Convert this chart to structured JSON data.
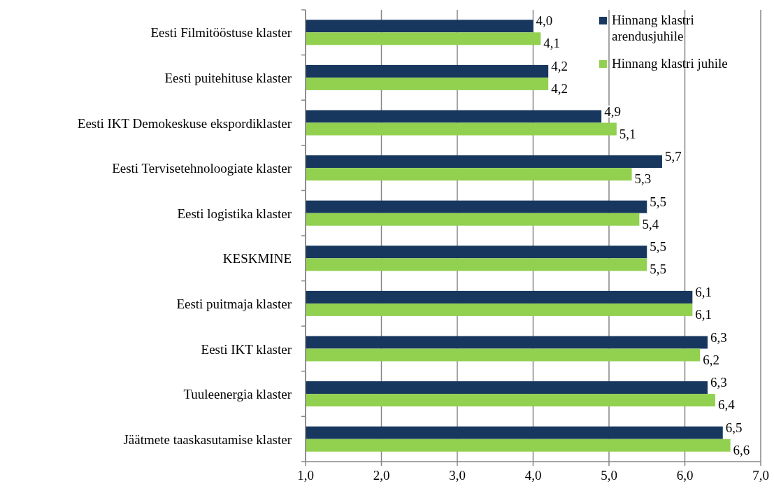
{
  "chart_data": {
    "type": "bar",
    "orientation": "horizontal",
    "categories": [
      "Eesti Filmitööstuse klaster",
      "Eesti puitehituse klaster",
      "Eesti IKT Demokeskuse ekspordiklaster",
      "Eesti Tervisetehnoloogiate klaster",
      "Eesti logistika klaster",
      "KESKMINE",
      "Eesti puitmaja klaster",
      "Eesti IKT klaster",
      "Tuuleenergia klaster",
      "Jäätmete taaskasutamise klaster"
    ],
    "series": [
      {
        "name": "Hinnang klastri arendusjuhile",
        "color": "#17375e",
        "values": [
          4.0,
          4.2,
          4.9,
          5.7,
          5.5,
          5.5,
          6.1,
          6.3,
          6.3,
          6.5
        ],
        "value_labels": [
          "4,0",
          "4,2",
          "4,9",
          "5,7",
          "5,5",
          "5,5",
          "6,1",
          "6,3",
          "6,3",
          "6,5"
        ]
      },
      {
        "name": "Hinnang klastri juhile",
        "color": "#92d050",
        "values": [
          4.1,
          4.2,
          5.1,
          5.3,
          5.4,
          5.5,
          6.1,
          6.2,
          6.4,
          6.6
        ],
        "value_labels": [
          "4,1",
          "4,2",
          "5,1",
          "5,3",
          "5,4",
          "5,5",
          "6,1",
          "6,2",
          "6,4",
          "6,6"
        ]
      }
    ],
    "xlim": [
      1,
      7
    ],
    "xticks": [
      {
        "value": 1,
        "label": "1,0"
      },
      {
        "value": 2,
        "label": "2,0"
      },
      {
        "value": 3,
        "label": "3,0"
      },
      {
        "value": 4,
        "label": "4,0"
      },
      {
        "value": 5,
        "label": "5,0"
      },
      {
        "value": 6,
        "label": "6,0"
      },
      {
        "value": 7,
        "label": "7,0"
      }
    ],
    "grid": "x",
    "legend": "top right"
  }
}
